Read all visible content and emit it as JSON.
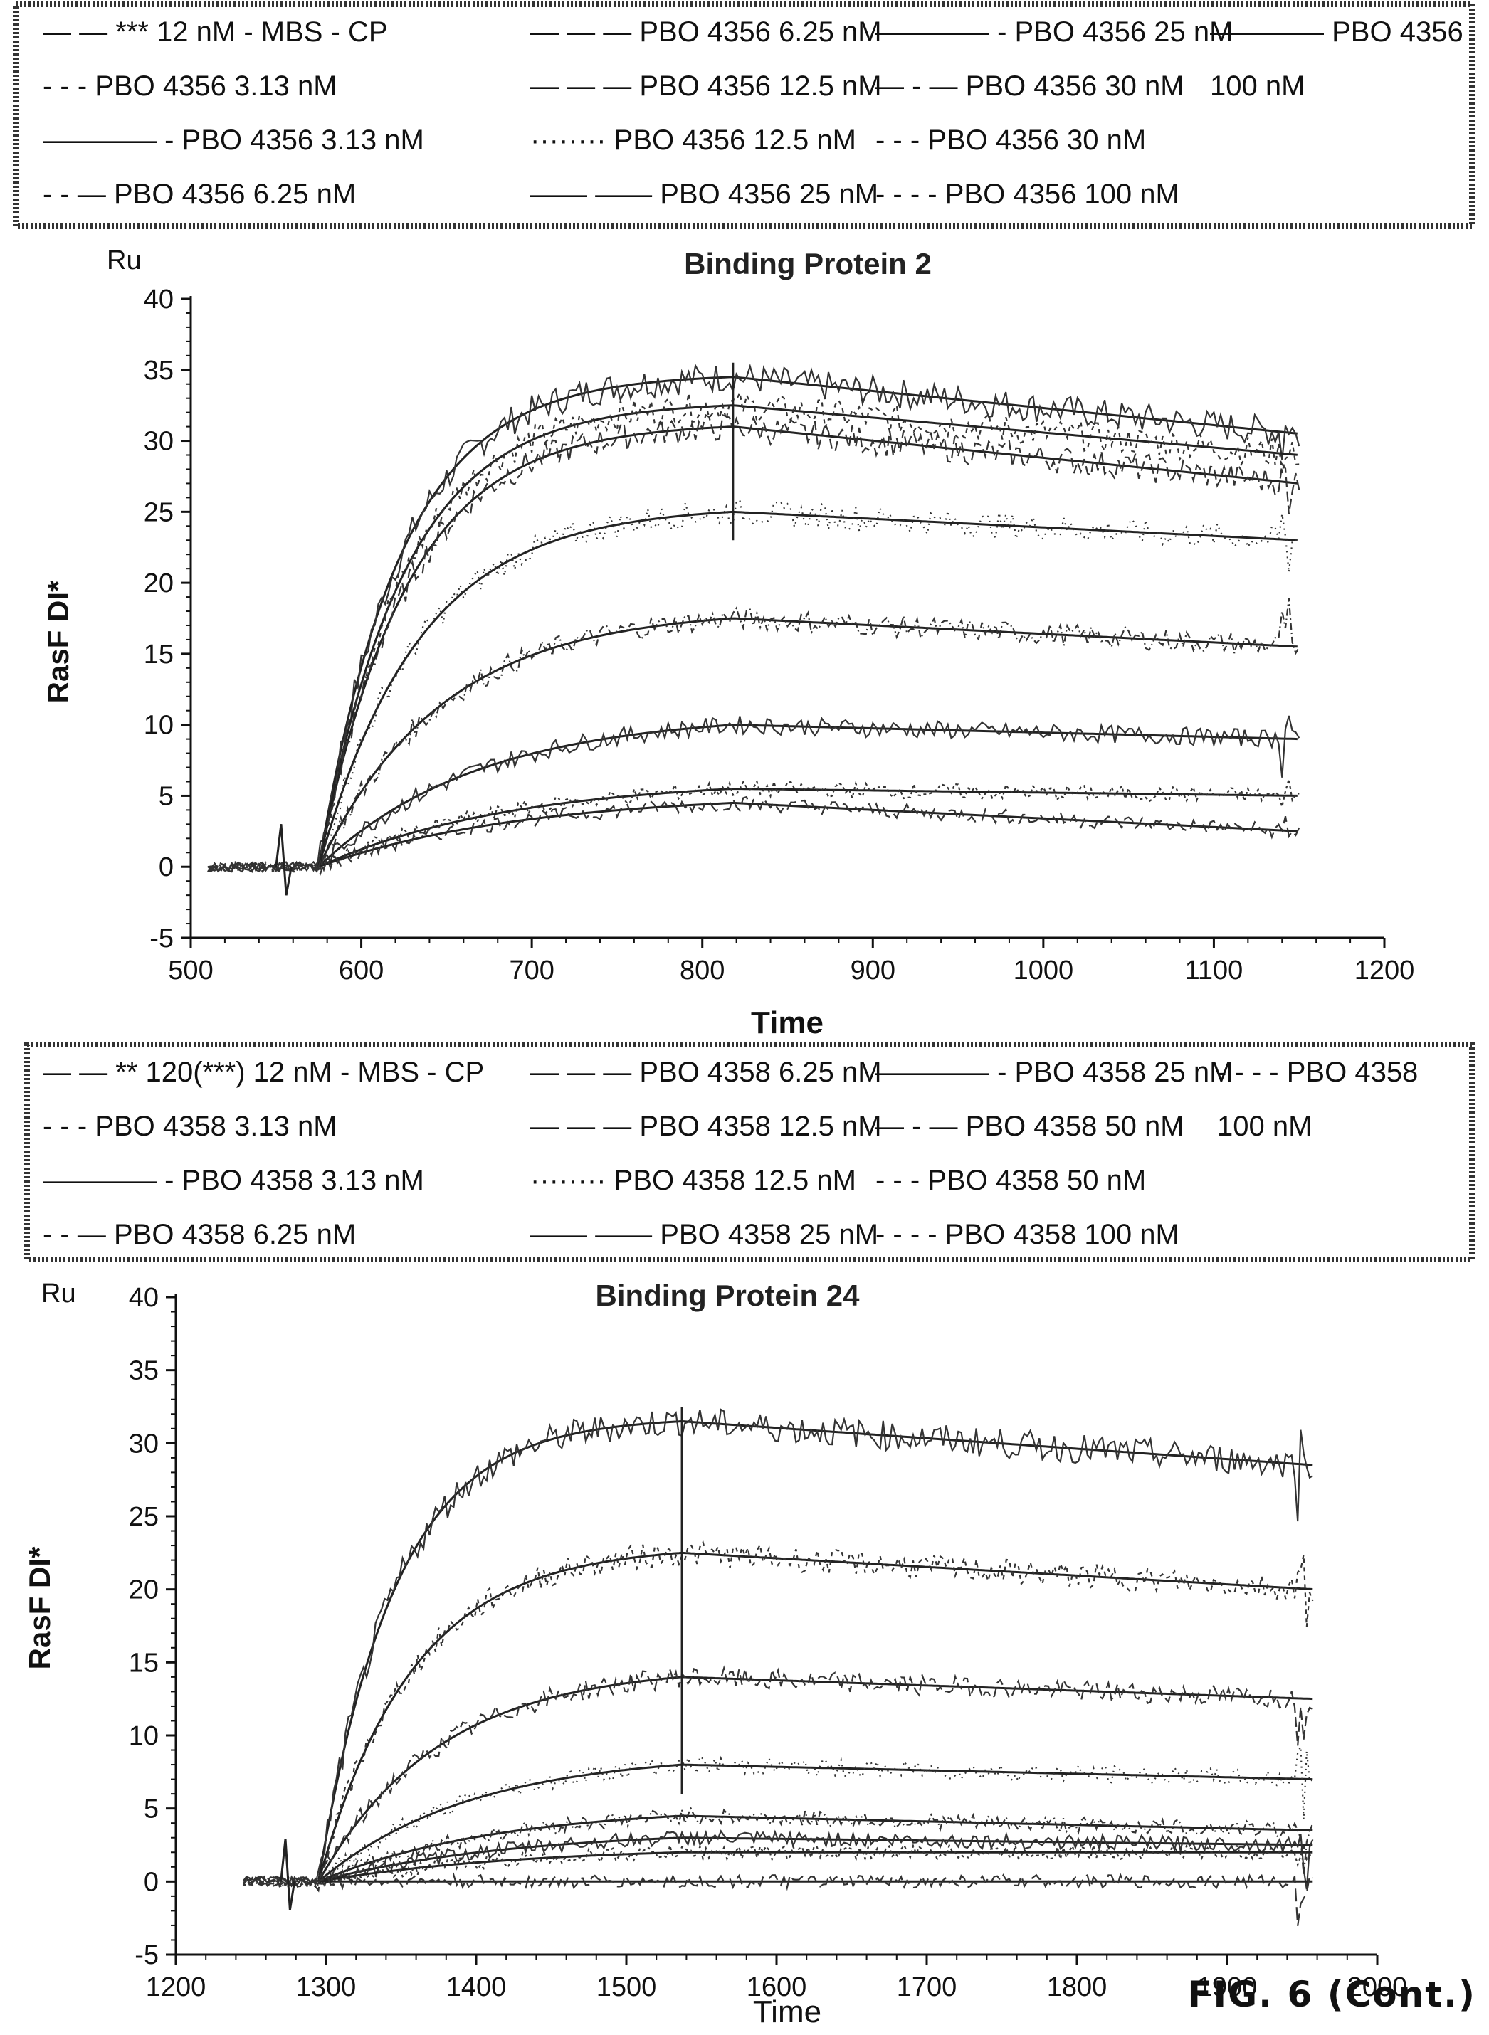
{
  "figure_label": "FIG. 6 (Cont.)",
  "chart_data": [
    {
      "type": "line",
      "title": "Binding Protein 2",
      "unit_label": "Ru",
      "xlabel": "Time",
      "ylabel": "RasF DI*",
      "xlim": [
        500,
        1200
      ],
      "ylim": [
        -5,
        40
      ],
      "x_ticks": [
        "500",
        "600",
        "700",
        "800",
        "900",
        "1000",
        "1100",
        "1200"
      ],
      "y_ticks": [
        "-5",
        "0",
        "5",
        "10",
        "15",
        "20",
        "25",
        "30",
        "35",
        "40"
      ],
      "association_start": 575,
      "dissociation_start": 818,
      "end": 1150,
      "baseline_start": 510,
      "legend": {
        "rows": [
          [
            "— — *** 12 nM - MBS - CP",
            "— — — PBO 4356 6.25 nM",
            "———— - PBO 4356 25 nM",
            "———— PBO 4356"
          ],
          [
            "- - - PBO 4356 3.13 nM",
            "— — — PBO 4356 12.5 nM",
            "— - — PBO 4356 30 nM",
            "100 nM"
          ],
          [
            "———— - PBO 4356 3.13 nM",
            "········ PBO 4356 12.5 nM",
            "- - - PBO 4356 30 nM",
            ""
          ],
          [
            "- - — PBO 4356 6.25 nM",
            "—— —— PBO 4356 25 nM",
            "- - - - PBO 4356 100 nM",
            ""
          ]
        ]
      },
      "series": [
        {
          "peak": 34.5,
          "end": 30.5
        },
        {
          "peak": 32.5,
          "end": 29.0
        },
        {
          "peak": 31.0,
          "end": 27.0
        },
        {
          "peak": 25.0,
          "end": 23.0
        },
        {
          "peak": 17.5,
          "end": 15.5
        },
        {
          "peak": 10.0,
          "end": 9.0
        },
        {
          "peak": 5.5,
          "end": 5.0
        },
        {
          "peak": 4.5,
          "end": 2.5
        }
      ]
    },
    {
      "type": "line",
      "title": "Binding Protein 24",
      "unit_label": "Ru",
      "xlabel": "Time",
      "ylabel": "RasF DI*",
      "xlim": [
        1200,
        2000
      ],
      "ylim": [
        -5,
        40
      ],
      "x_ticks": [
        "1200",
        "1300",
        "1400",
        "1500",
        "1600",
        "1700",
        "1800",
        "1900",
        "2000"
      ],
      "y_ticks": [
        "-5",
        "0",
        "5",
        "10",
        "15",
        "20",
        "25",
        "30",
        "35",
        "40"
      ],
      "association_start": 1295,
      "dissociation_start": 1537,
      "end": 1958,
      "baseline_start": 1245,
      "legend": {
        "rows": [
          [
            "— — ** 120(***) 12 nM - MBS - CP",
            "— — — PBO 4358 6.25 nM",
            "———— - PBO 4358 25 nM",
            "- - - - PBO 4358"
          ],
          [
            "- - - PBO 4358 3.13 nM",
            "— — — PBO 4358 12.5 nM",
            "— - — PBO 4358 50 nM",
            "100 nM"
          ],
          [
            "———— - PBO 4358 3.13 nM",
            "········ PBO 4358 12.5 nM",
            "- - - PBO 4358 50 nM",
            ""
          ],
          [
            "- - — PBO 4358 6.25 nM",
            "—— —— PBO 4358 25 nM",
            "- - - - PBO 4358 100 nM",
            ""
          ]
        ]
      },
      "series": [
        {
          "peak": 31.5,
          "end": 28.5
        },
        {
          "peak": 22.5,
          "end": 20.0
        },
        {
          "peak": 14.0,
          "end": 12.5
        },
        {
          "peak": 8.0,
          "end": 7.0
        },
        {
          "peak": 4.5,
          "end": 3.5
        },
        {
          "peak": 3.0,
          "end": 2.5
        },
        {
          "peak": 2.0,
          "end": 2.0
        },
        {
          "peak": 0.0,
          "end": 0.0
        }
      ]
    }
  ]
}
